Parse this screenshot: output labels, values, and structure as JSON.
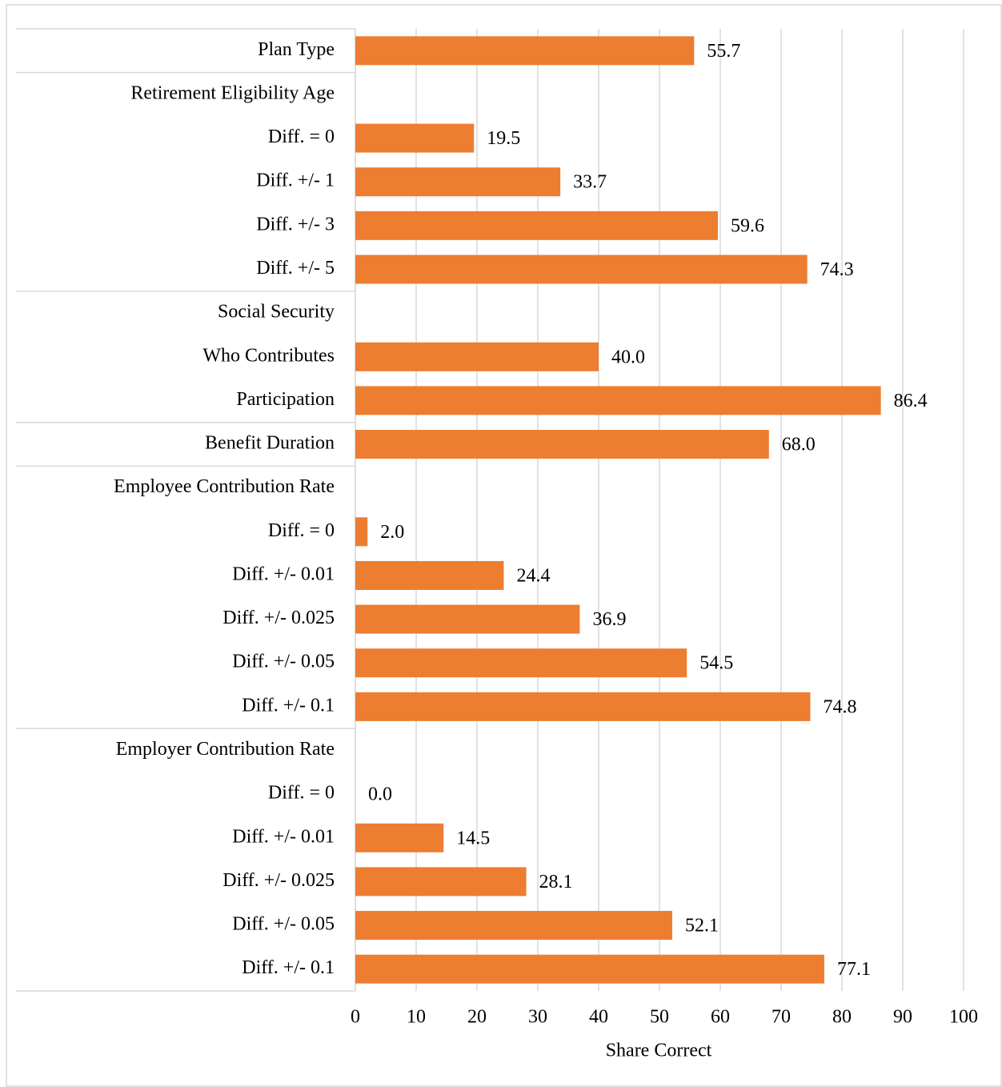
{
  "chart_data": {
    "type": "bar",
    "orientation": "horizontal",
    "x_label": "Share Correct",
    "categories": [
      "Plan Type",
      "Retirement Eligibility Age",
      "Diff. = 0",
      "Diff. +/- 1",
      "Diff. +/- 3",
      "Diff. +/- 5",
      "Social Security",
      "Who Contributes",
      "Participation",
      "Benefit Duration",
      "Employee Contribution Rate",
      "Diff. = 0",
      "Diff. +/- 0.01",
      "Diff. +/- 0.025",
      "Diff. +/- 0.05",
      "Diff. +/- 0.1",
      "Employer Contribution Rate",
      "Diff. = 0",
      "Diff. +/- 0.01",
      "Diff. +/- 0.025",
      "Diff. +/- 0.05",
      "Diff. +/- 0.1"
    ],
    "values": [
      55.7,
      null,
      19.5,
      33.7,
      59.6,
      74.3,
      null,
      40,
      86.4,
      68,
      null,
      2,
      24.4,
      36.9,
      54.5,
      74.8,
      null,
      0,
      14.5,
      28.1,
      52.1,
      77.1
    ],
    "value_labels": [
      "55.7",
      null,
      "19.5",
      "33.7",
      "59.6",
      "74.3",
      null,
      "40.0",
      "86.4",
      "68.0",
      null,
      "2.0",
      "24.4",
      "36.9",
      "54.5",
      "74.8",
      null,
      "0.0",
      "14.5",
      "28.1",
      "52.1",
      "77.1"
    ],
    "color": "#ed7d31",
    "xlim": [
      0,
      100
    ],
    "xticks": [
      0,
      10,
      20,
      30,
      40,
      50,
      60,
      70,
      80,
      90,
      100
    ],
    "grid": true
  }
}
